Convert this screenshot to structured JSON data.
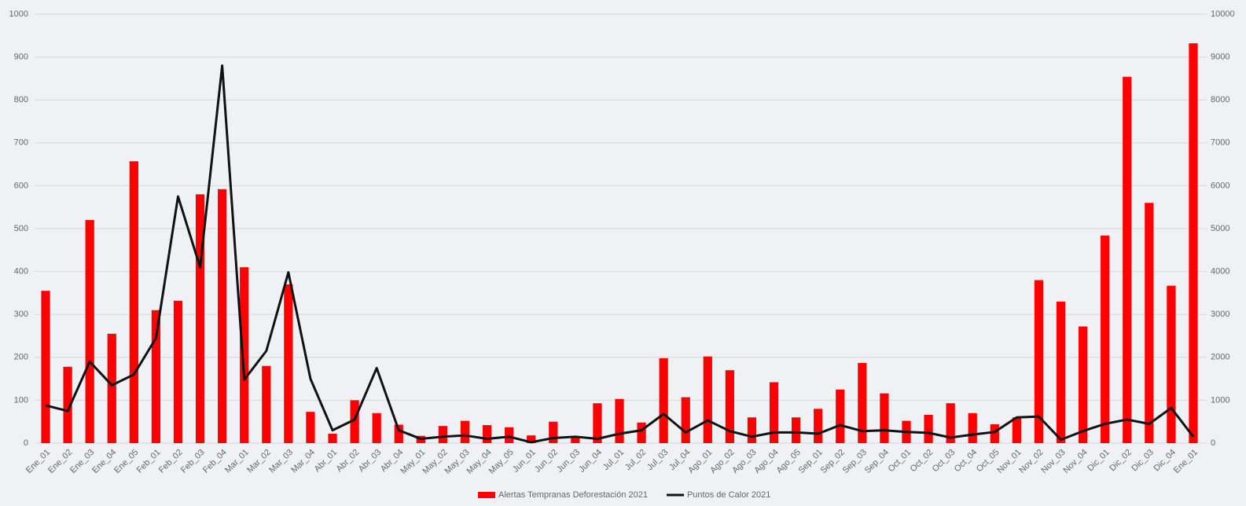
{
  "chart_data": {
    "type": "bar-line",
    "categories": [
      "Ene_01",
      "Ene_02",
      "Ene_03",
      "Ene_04",
      "Ene_05",
      "Feb_01",
      "Feb_02",
      "Feb_03",
      "Feb_04",
      "Mar_01",
      "Mar_02",
      "Mar_03",
      "Mar_04",
      "Abr_01",
      "Abr_02",
      "Abr_03",
      "Abr_04",
      "May_01",
      "May_02",
      "May_03",
      "May_04",
      "May_05",
      "Jun_01",
      "Jun_02",
      "Jun_03",
      "Jun_04",
      "Jul_01",
      "Jul_02",
      "Jul_03",
      "Jul_04",
      "Ago_01",
      "Ago_02",
      "Ago_03",
      "Ago_04",
      "Ago_05",
      "Sep_01",
      "Sep_02",
      "Sep_03",
      "Sep_04",
      "Oct_01",
      "Oct_02",
      "Oct_03",
      "Oct_04",
      "Oct_05",
      "Nov_01",
      "Nov_02",
      "Nov_03",
      "Nov_04",
      "Dic_01",
      "Dic_02",
      "Dic_03",
      "Dic_04",
      "Ene_01"
    ],
    "series": [
      {
        "name": "Alertas Tempranas Deforestación 2021",
        "type": "bar",
        "color": "#ff0000",
        "values": [
          355,
          178,
          520,
          255,
          657,
          310,
          332,
          580,
          592,
          410,
          180,
          370,
          73,
          22,
          100,
          70,
          43,
          17,
          40,
          52,
          42,
          37,
          18,
          50,
          14,
          93,
          103,
          48,
          198,
          107,
          202,
          170,
          60,
          142,
          60,
          80,
          125,
          187,
          116,
          52,
          66,
          93,
          70,
          44,
          60,
          380,
          330,
          272,
          484,
          854,
          560,
          367,
          932
        ]
      },
      {
        "name": "Puntos de Calor 2021",
        "type": "line",
        "color": "#111111",
        "axis": "y2",
        "values": [
          880,
          750,
          1900,
          1350,
          1600,
          2450,
          5750,
          4100,
          8800,
          1480,
          2150,
          3980,
          1500,
          300,
          550,
          1750,
          300,
          100,
          150,
          180,
          100,
          150,
          20,
          120,
          150,
          100,
          220,
          300,
          680,
          250,
          530,
          280,
          150,
          250,
          250,
          220,
          420,
          280,
          300,
          260,
          240,
          130,
          200,
          260,
          600,
          620,
          80,
          280,
          450,
          550,
          450,
          820,
          150
        ]
      }
    ],
    "ylim": [
      0,
      1000
    ],
    "yticks": [
      0,
      100,
      200,
      300,
      400,
      500,
      600,
      700,
      800,
      900,
      1000
    ],
    "y2lim": [
      0,
      10000
    ],
    "y2ticks": [
      0,
      1000,
      2000,
      3000,
      4000,
      5000,
      6000,
      7000,
      8000,
      9000,
      10000
    ],
    "grid": true,
    "legend": "bottom"
  }
}
